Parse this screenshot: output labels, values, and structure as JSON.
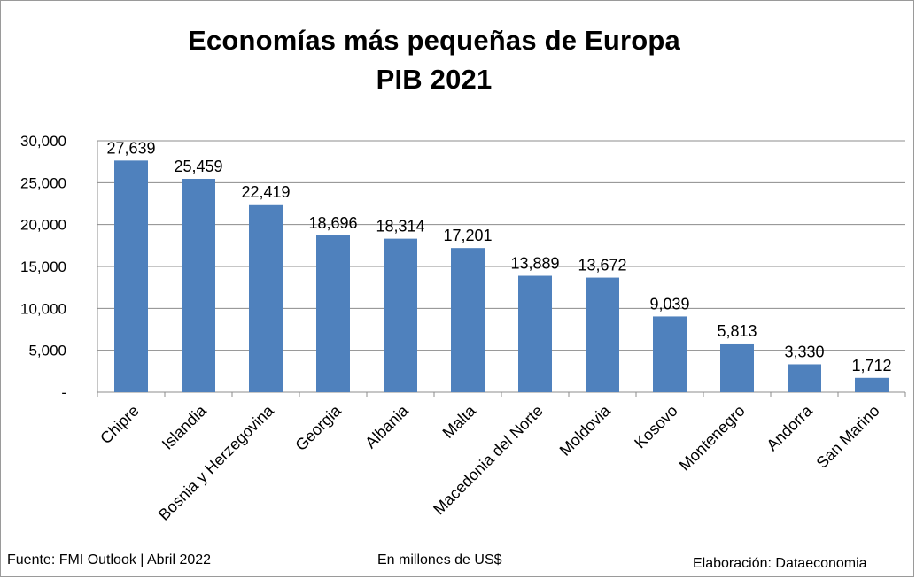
{
  "chart_data": {
    "type": "bar",
    "title": "Economías más pequeñas de Europa",
    "subtitle": "PIB 2021",
    "categories": [
      "Chipre",
      "Islandia",
      "Bosnia y Herzegovina",
      "Georgia",
      "Albania",
      "Malta",
      "Macedonia del Norte",
      "Moldovia",
      "Kosovo",
      "Montenegro",
      "Andorra",
      "San Marino"
    ],
    "values": [
      27639,
      25459,
      22419,
      18696,
      18314,
      17201,
      13889,
      13672,
      9039,
      5813,
      3330,
      1712
    ],
    "data_labels": [
      "27,639",
      "25,459",
      "22,419",
      "18,696",
      "18,314",
      "17,201",
      "13,889",
      "13,672",
      "9,039",
      "5,813",
      "3,330",
      "1,712"
    ],
    "yticks": [
      0,
      5000,
      10000,
      15000,
      20000,
      25000,
      30000
    ],
    "ytick_labels": [
      "-",
      "5,000",
      "10,000",
      "15,000",
      "20,000",
      "25,000",
      "30,000"
    ],
    "ylim": [
      0,
      30000
    ],
    "grid": true,
    "legend": "none",
    "bar_color": "#4f81bd",
    "xlabel": "",
    "ylabel": ""
  },
  "footer": {
    "source": "Fuente: FMI Outlook  |  Abril 2022",
    "units": "En millones de US$",
    "credit": "Elaboración: Dataeconomia"
  }
}
